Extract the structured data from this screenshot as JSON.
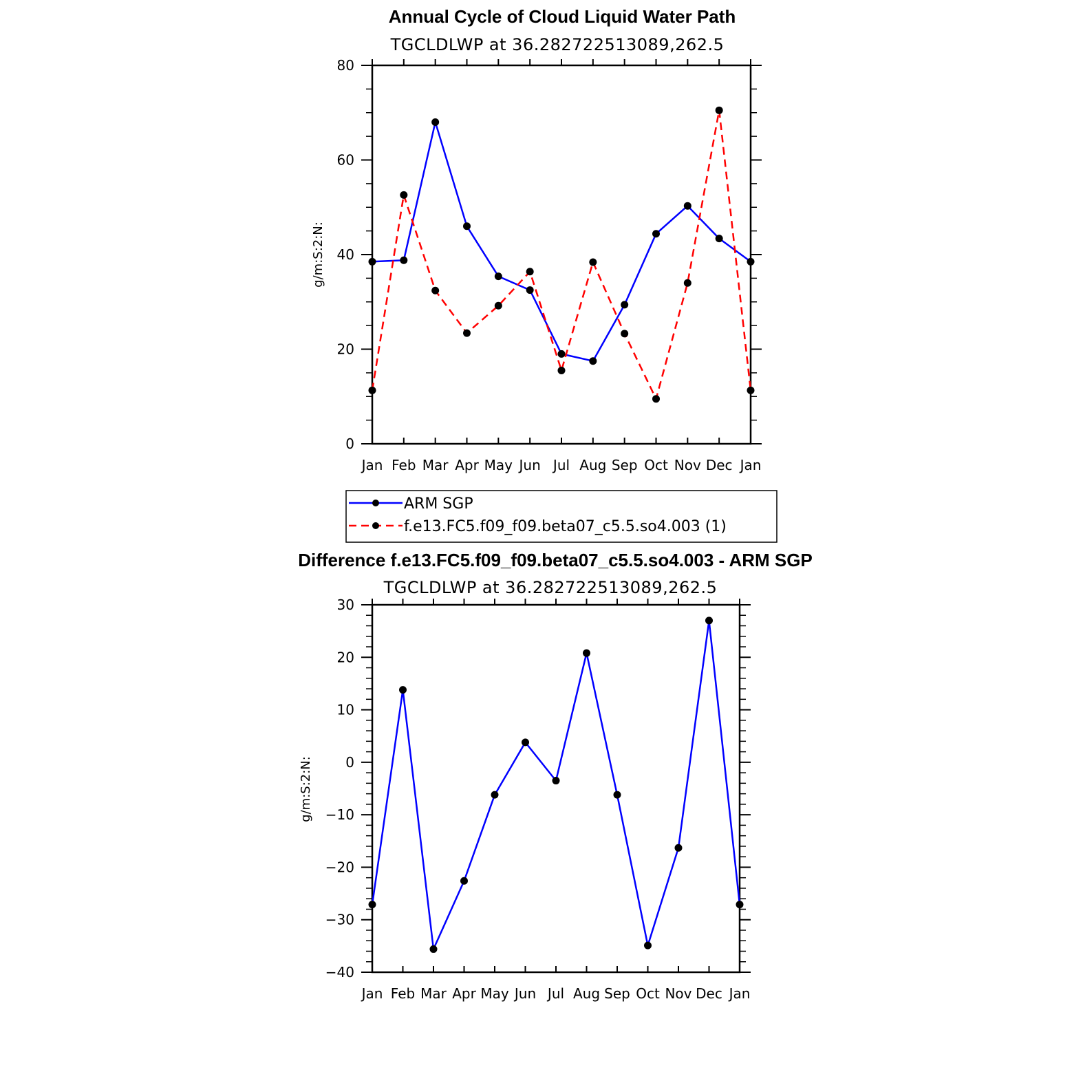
{
  "chart_data": [
    {
      "type": "line",
      "title": "Annual Cycle of Cloud Liquid Water Path",
      "subtitle": "TGCLDLWP at 36.282722513089,262.5",
      "xlabel": "",
      "ylabel": "g/m:S:2:N:",
      "categories": [
        "Jan",
        "Feb",
        "Mar",
        "Apr",
        "May",
        "Jun",
        "Jul",
        "Aug",
        "Sep",
        "Oct",
        "Nov",
        "Dec",
        "Jan"
      ],
      "ylim": [
        0,
        80
      ],
      "yticks": [
        0,
        20,
        40,
        60,
        80
      ],
      "series": [
        {
          "name": "ARM SGP",
          "color": "#0000ff",
          "dash": "solid",
          "values": [
            38.5,
            38.8,
            68.0,
            46.0,
            35.4,
            32.5,
            19.0,
            17.5,
            29.4,
            44.4,
            50.3,
            43.4,
            38.5
          ]
        },
        {
          "name": "f.e13.FC5.f09_f09.beta07_c5.5.so4.003 (1)",
          "color": "#ff0000",
          "dash": "dashed",
          "values": [
            11.3,
            52.6,
            32.4,
            23.4,
            29.2,
            36.4,
            15.5,
            38.4,
            23.3,
            9.5,
            34.0,
            70.5,
            11.3
          ]
        }
      ],
      "legend": [
        "ARM SGP",
        "f.e13.FC5.f09_f09.beta07_c5.5.so4.003 (1)"
      ]
    },
    {
      "type": "line",
      "title": "Difference f.e13.FC5.f09_f09.beta07_c5.5.so4.003 - ARM SGP",
      "subtitle": "TGCLDLWP at 36.282722513089,262.5",
      "xlabel": "",
      "ylabel": "g/m:S:2:N:",
      "categories": [
        "Jan",
        "Feb",
        "Mar",
        "Apr",
        "May",
        "Jun",
        "Jul",
        "Aug",
        "Sep",
        "Oct",
        "Nov",
        "Dec",
        "Jan"
      ],
      "ylim": [
        -40,
        30
      ],
      "yticks": [
        -40,
        -30,
        -20,
        -10,
        0,
        10,
        20,
        30
      ],
      "ytick_labels": [
        "−40",
        "−30",
        "−20",
        "−10",
        "0",
        "10",
        "20",
        "30"
      ],
      "series": [
        {
          "name": "Difference",
          "color": "#0000ff",
          "dash": "solid",
          "values": [
            -27.1,
            13.8,
            -35.6,
            -22.6,
            -6.2,
            3.8,
            -3.5,
            20.8,
            -6.2,
            -34.9,
            -16.3,
            27.0,
            -27.1
          ]
        }
      ]
    }
  ]
}
